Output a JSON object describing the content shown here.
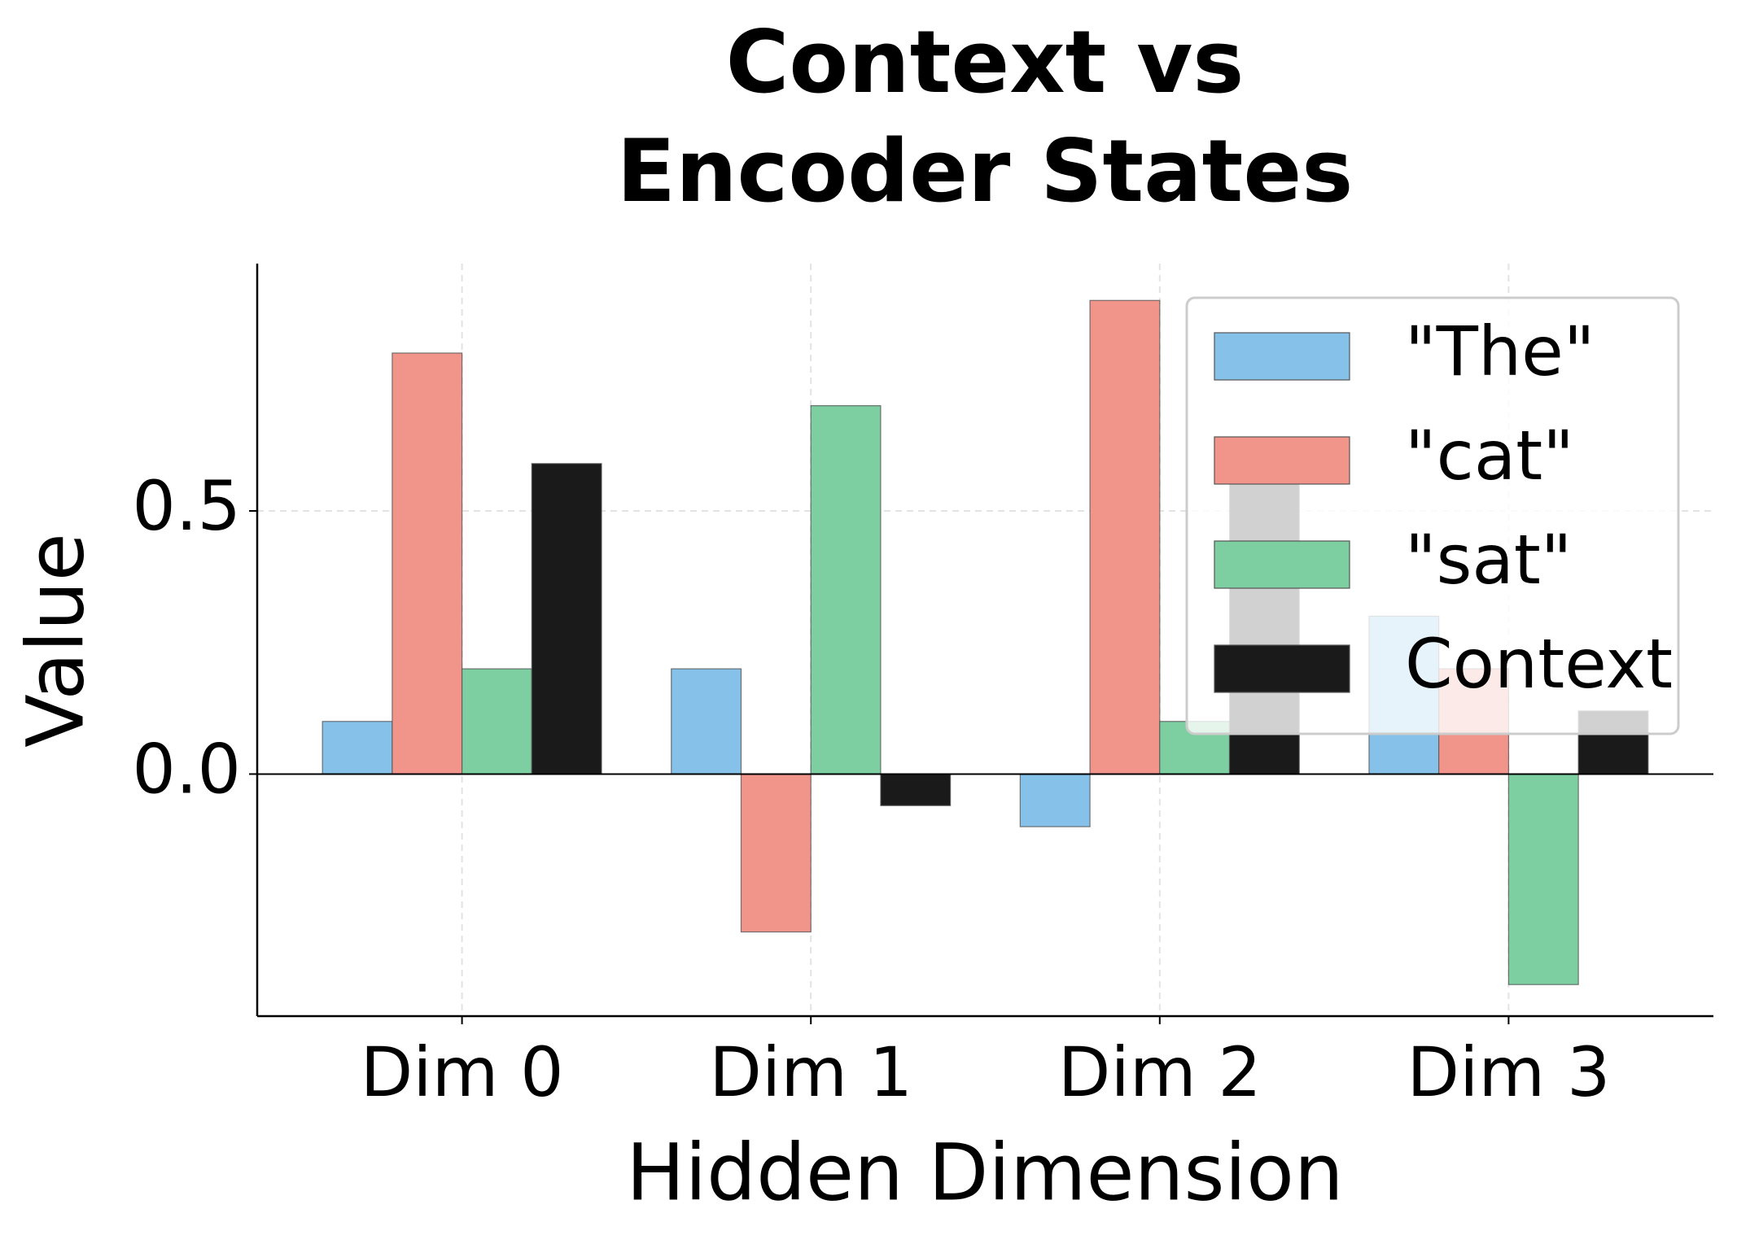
{
  "chart_data": {
    "type": "bar",
    "title": [
      "Context vs",
      "Encoder States"
    ],
    "x_label": "Hidden Dimension",
    "y_label": "Value",
    "categories": [
      "Dim 0",
      "Dim 1",
      "Dim 2",
      "Dim 3"
    ],
    "series": [
      {
        "name": "\"The\"",
        "color": "#85c1e9",
        "values": [
          0.1,
          0.2,
          -0.1,
          0.3
        ]
      },
      {
        "name": "\"cat\"",
        "color": "#f1948a",
        "values": [
          0.8,
          -0.3,
          0.9,
          0.2
        ]
      },
      {
        "name": "\"sat\"",
        "color": "#7dcea0",
        "values": [
          0.2,
          0.7,
          0.1,
          -0.4
        ]
      },
      {
        "name": "Context",
        "color": "#1a1a1a",
        "values": [
          0.59,
          -0.06,
          0.6,
          0.12
        ]
      }
    ],
    "ylim": [
      -0.46,
      0.97
    ],
    "yticks": [
      0.0,
      0.5
    ],
    "grid": true,
    "legend": "upper right"
  }
}
